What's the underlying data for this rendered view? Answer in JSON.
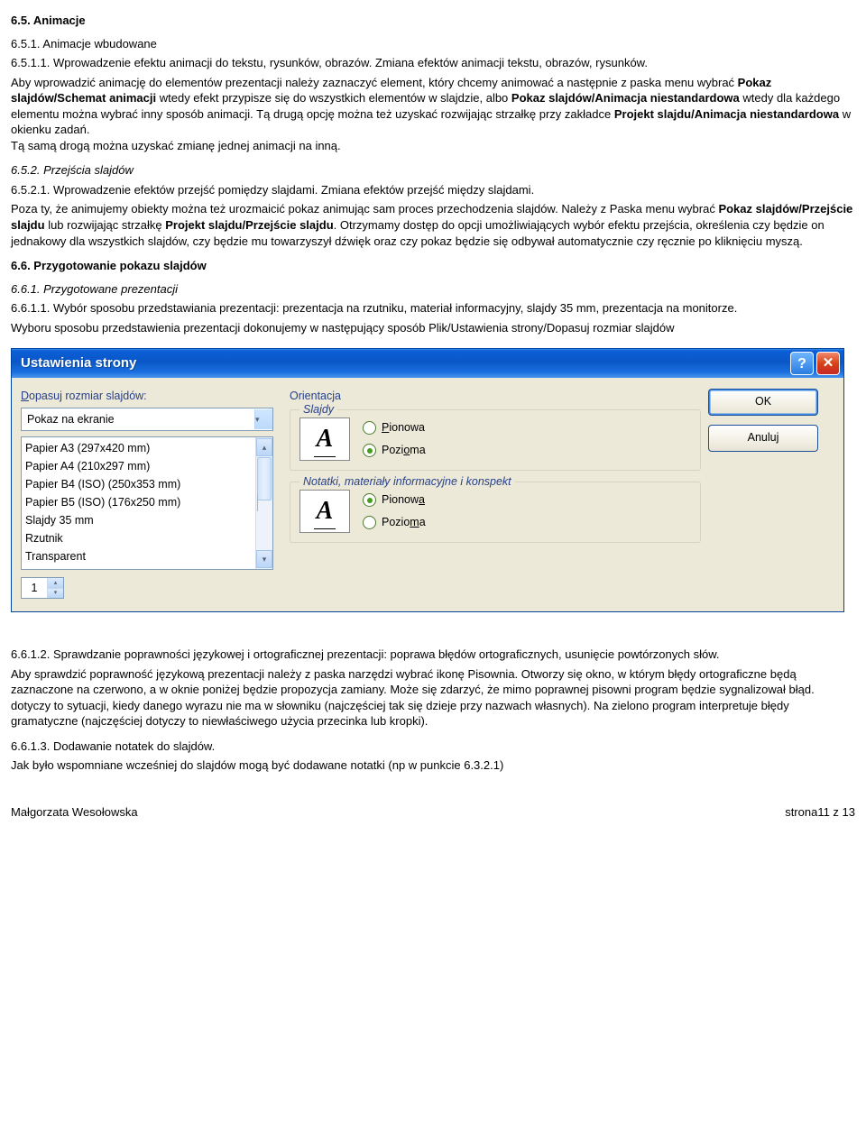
{
  "s65": {
    "h": "6.5. Animacje",
    "s651": "6.5.1. Animacje wbudowane",
    "s6511": " 6.5.1.1. Wprowadzenie efektu animacji do tekstu, rysunków, obrazów. Zmiana efektów animacji tekstu, obrazów, rysunków.",
    "p1a": "Aby wprowadzić animację do elementów prezentacji należy zaznaczyć element, który chcemy animować a następnie z paska menu wybrać ",
    "p1b": "Pokaz slajdów/Schemat animacji",
    "p1c": " wtedy efekt przypisze się do wszystkich elementów w slajdzie, albo ",
    "p1d": "Pokaz slajdów/Animacja niestandardowa",
    "p1e": " wtedy dla każdego elementu można wybrać inny sposób animacji. Tą drugą opcję można też uzyskać rozwijając strzałkę przy zakładce ",
    "p1f": "Projekt slajdu/Animacja niestandardowa",
    "p1g": " w okienku zadań.",
    "p1h": "Tą samą drogą można uzyskać zmianę jednej animacji na inną.",
    "s652": "6.5.2. Przejścia slajdów",
    "s6521": "6.5.2.1. Wprowadzenie efektów przejść pomiędzy slajdami. Zmiana efektów przejść między slajdami.",
    "p2a": "Poza ty, że animujemy obiekty można też urozmaicić pokaz animując sam proces przechodzenia slajdów. Należy z Paska menu wybrać ",
    "p2b": "Pokaz slajdów/Przejście slajdu",
    "p2c": " lub rozwijając strzałkę ",
    "p2d": "Projekt slajdu/Przejście slajdu",
    "p2e": ". Otrzymamy dostęp do opcji umożliwiających wybór efektu przejścia, określenia czy będzie on jednakowy dla wszystkich slajdów, czy będzie mu towarzyszył dźwięk oraz czy pokaz będzie się odbywał automatycznie czy ręcznie po kliknięciu myszą."
  },
  "s66": {
    "h": "6.6. Przygotowanie pokazu slajdów",
    "s661": "6.6.1. Przygotowane prezentacji",
    "s6611": "6.6.1.1. Wybór sposobu przedstawiania prezentacji: prezentacja na rzutniku, materiał informacyjny, slajdy 35 mm, prezentacja na monitorze.",
    "p3": "Wyboru sposobu przedstawienia prezentacji dokonujemy w następujący sposób Plik/Ustawienia strony/Dopasuj rozmiar slajdów",
    "s6612": "6.6.1.2. Sprawdzanie poprawności językowej i ortograficznej prezentacji: poprawa błędów ortograficznych, usunięcie powtórzonych słów.",
    "p4": "Aby sprawdzić poprawność językową prezentacji należy z paska narzędzi wybrać ikonę Pisownia. Otworzy się okno, w którym błędy ortograficzne będą zaznaczone na czerwono, a w oknie poniżej będzie propozycja zamiany. Może się zdarzyć, że mimo poprawnej pisowni program będzie sygnalizował błąd. dotyczy to sytuacji, kiedy danego wyrazu nie ma w słowniku (najczęściej tak się dzieje przy nazwach własnych). Na zielono program interpretuje błędy gramatyczne (najczęściej dotyczy to niewłaściwego użycia przecinka lub kropki).",
    "s6613": "6.6.1.3. Dodawanie notatek do slajdów.",
    "p5": "Jak było wspomniane wcześniej do slajdów mogą być dodawane notatki (np w punkcie 6.3.2.1)"
  },
  "dialog": {
    "title": "Ustawienia strony",
    "left_label_pre": "D",
    "left_label_rest": "opasuj rozmiar slajdów:",
    "combo_value": "Pokaz na ekranie",
    "list": [
      "Papier A3 (297x420 mm)",
      "Papier A4 (210x297 mm)",
      "Papier B4 (ISO) (250x353 mm)",
      "Papier B5 (ISO) (176x250 mm)",
      "Slajdy 35 mm",
      "Rzutnik",
      "Transparent"
    ],
    "spinner_value": "1",
    "mid": {
      "orientation": "Orientacja",
      "group1": "Slajdy",
      "group2": "Notatki, materiały informacyjne i konspekt",
      "r_pionowa_P": "P",
      "r_pionowa_rest": "ionowa",
      "r_pozioma_o": "o",
      "r_pozioma_pre": "Pozi",
      "r_pozioma_rest": "ma",
      "r2_pionowa_a": "a",
      "r2_pionowa_pre": "Pionow",
      "r2_pozioma_m": "m",
      "r2_pozioma_pre": "Pozio",
      "r2_pozioma_rest": "a"
    },
    "ok": "OK",
    "cancel": "Anuluj"
  },
  "footer": {
    "author": "Małgorzata Wesołowska",
    "page": "strona11 z 13"
  }
}
